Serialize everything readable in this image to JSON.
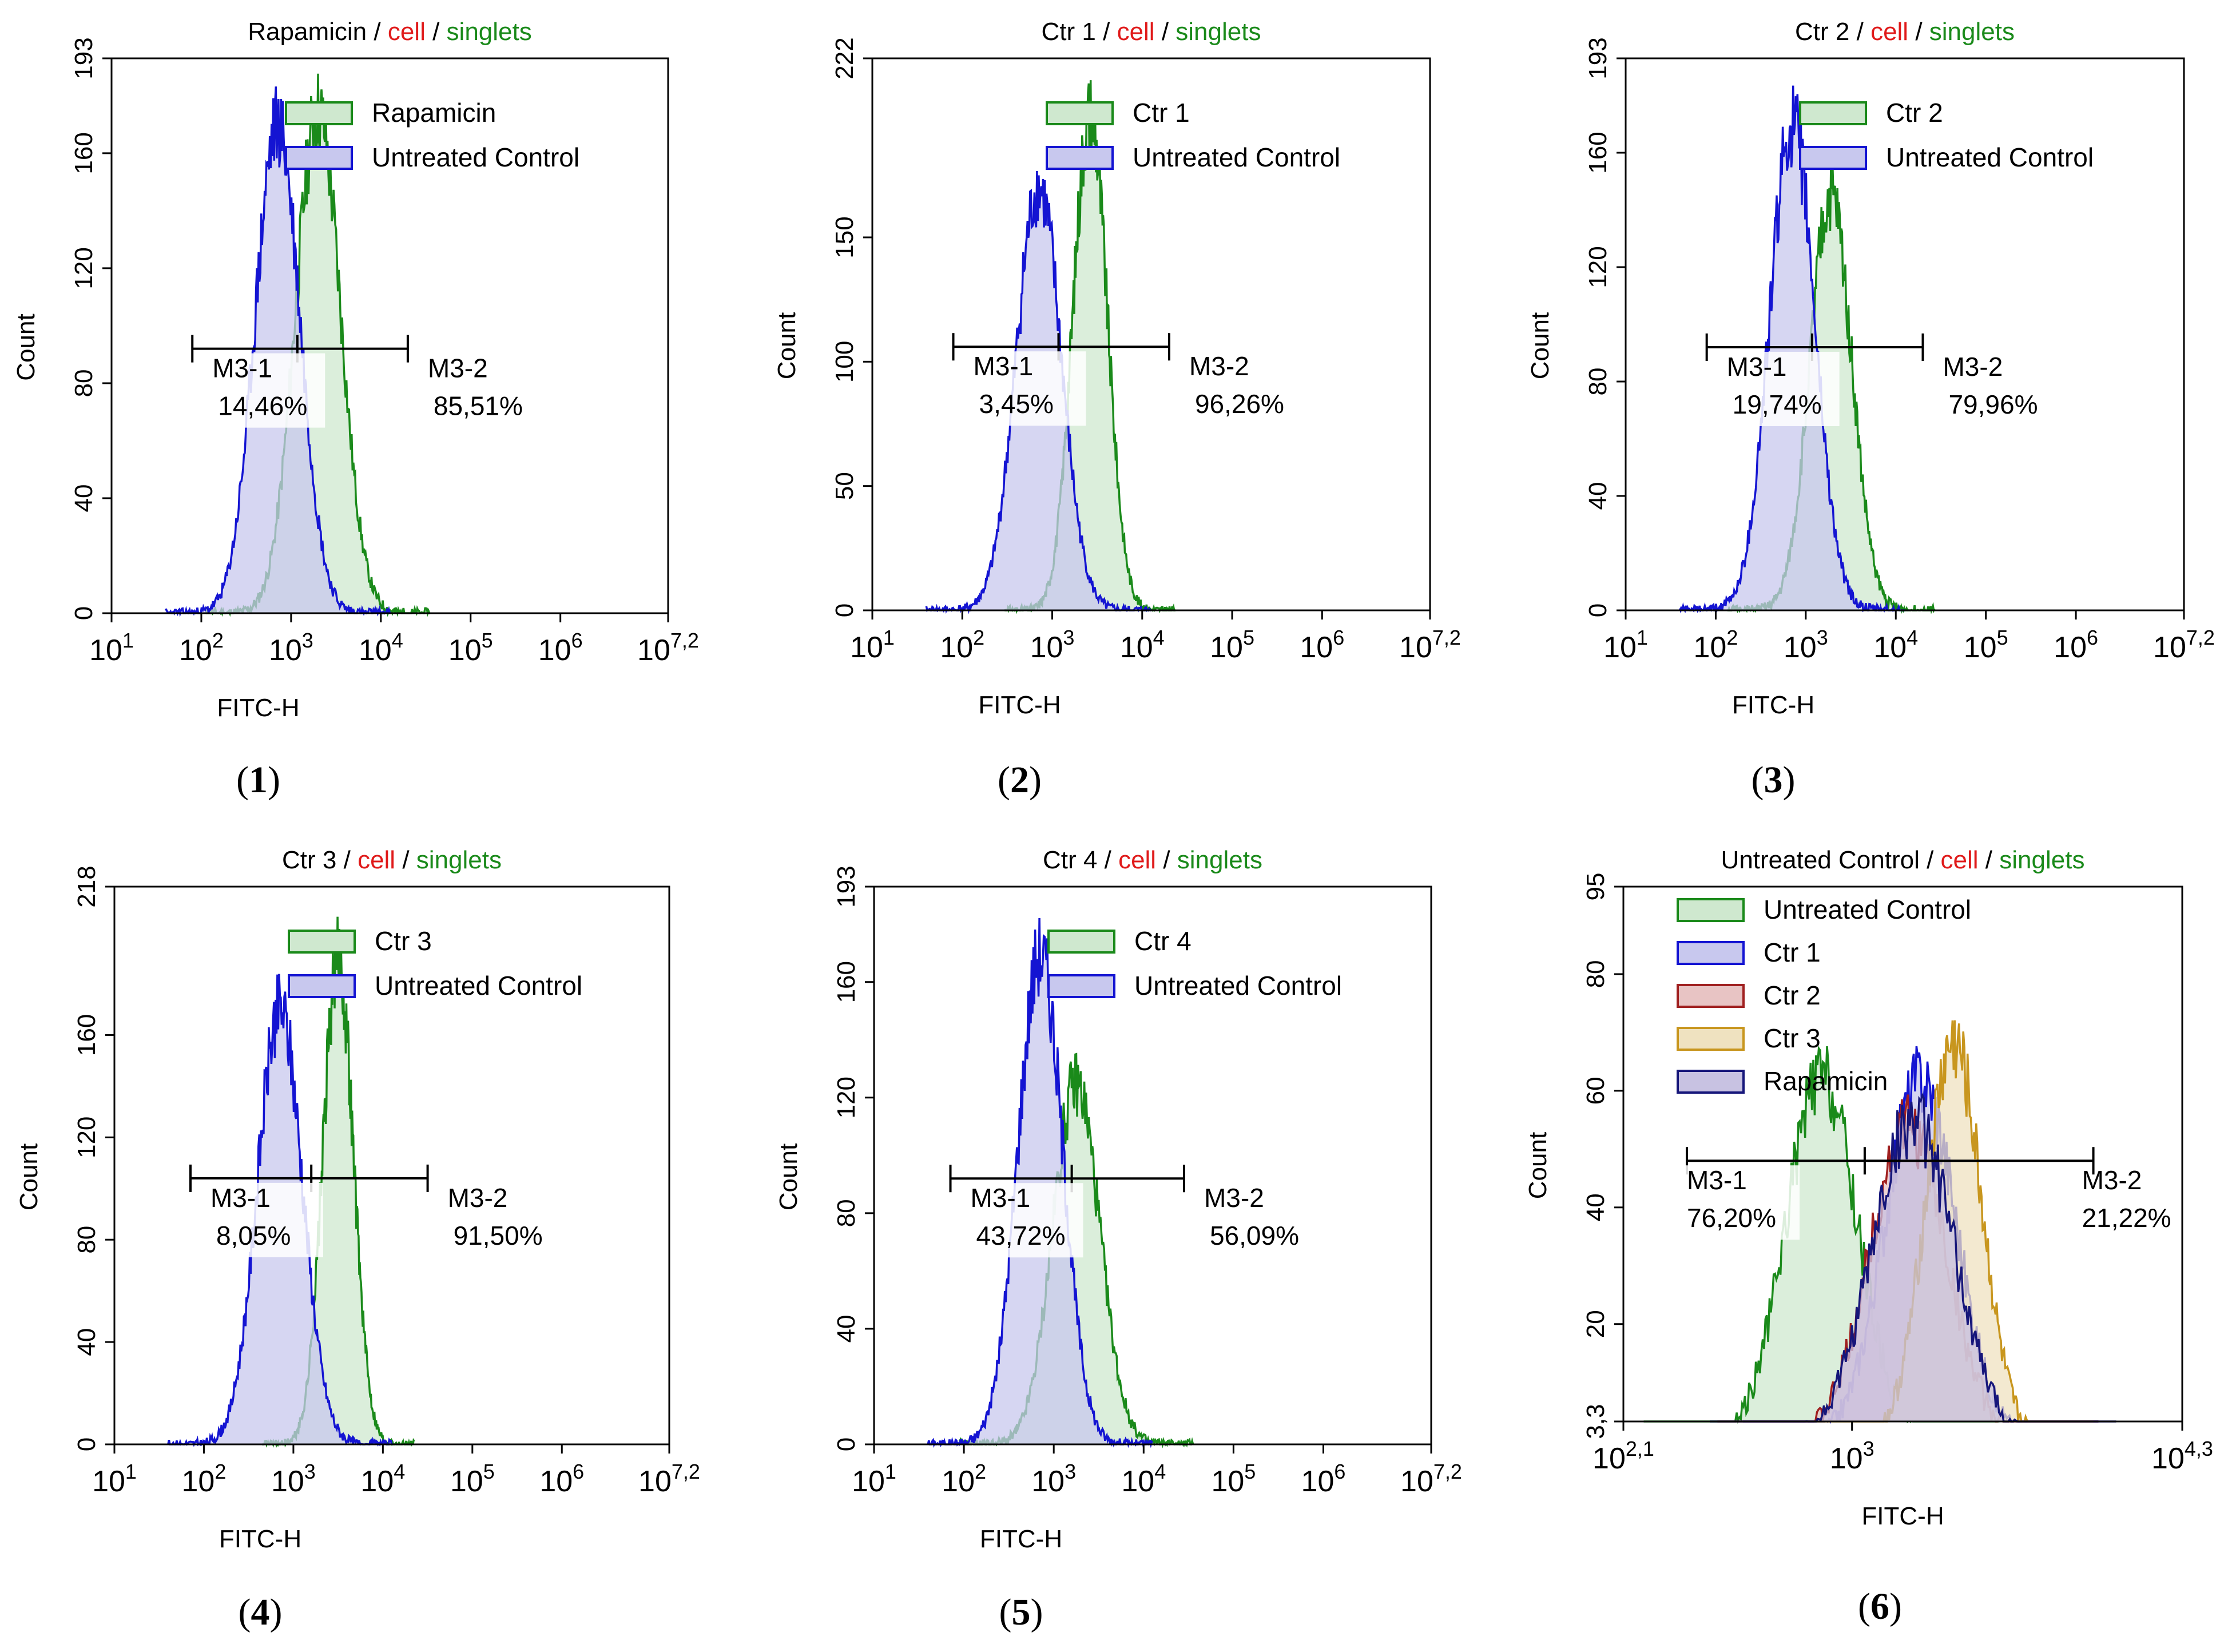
{
  "colors": {
    "green": "#1a8a1a",
    "green_fill": "#cfe8cf",
    "blue": "#1414d2",
    "blue_fill": "#c8c8ee",
    "red": "#e01a1a",
    "darkred": "#a02020",
    "darkred_fill": "#e8c4c4",
    "gold": "#c8961e",
    "gold_fill": "#efe2c0",
    "navy": "#16167a",
    "navy_fill": "#c8c2e2"
  },
  "chart_data": [
    {
      "id": "p1",
      "type": "histogram",
      "caption_num": "1",
      "title": {
        "a": "Rapamicin",
        "b": "cell",
        "c": "singlets"
      },
      "xlabel": "FITC-H",
      "ylabel": "Count",
      "xscale": "log",
      "xlim": [
        1,
        7.2
      ],
      "xticks": [
        {
          "b": "10",
          "e": "1",
          "v": 1
        },
        {
          "b": "10",
          "e": "2",
          "v": 2
        },
        {
          "b": "10",
          "e": "3",
          "v": 3
        },
        {
          "b": "10",
          "e": "4",
          "v": 4
        },
        {
          "b": "10",
          "e": "5",
          "v": 5
        },
        {
          "b": "10",
          "e": "6",
          "v": 6
        },
        {
          "b": "10",
          "e": "7,2",
          "v": 7.2
        }
      ],
      "ylim": [
        0,
        193
      ],
      "yticks": [
        {
          "v": 0,
          "t": "0"
        },
        {
          "v": 40,
          "t": "40"
        },
        {
          "v": 80,
          "t": "80"
        },
        {
          "v": 120,
          "t": "120"
        },
        {
          "v": 160,
          "t": "160"
        },
        {
          "v": 193,
          "t": "193"
        }
      ],
      "series": [
        {
          "name": "Rapamicin",
          "color": "green",
          "fill": "green_fill",
          "center": 3.3,
          "sigma": 0.25,
          "peak": 175,
          "seed": 11
        },
        {
          "name": "Untreated Control",
          "color": "blue",
          "fill": "blue_fill",
          "center": 2.85,
          "sigma": 0.25,
          "peak": 170,
          "seed": 23
        }
      ],
      "gate": {
        "y": 92,
        "x1": 1.9,
        "mid": 3.07,
        "x2": 4.3
      },
      "markers": [
        {
          "label": "M3-1",
          "pct": "14,46%",
          "side": "left"
        },
        {
          "label": "M3-2",
          "pct": "85,51%",
          "side": "right"
        }
      ]
    },
    {
      "id": "p2",
      "type": "histogram",
      "caption_num": "2",
      "title": {
        "a": "Ctr 1",
        "b": "cell",
        "c": "singlets"
      },
      "xlabel": "FITC-H",
      "ylabel": "Count",
      "xscale": "log",
      "xlim": [
        1,
        7.2
      ],
      "xticks": [
        {
          "b": "10",
          "e": "1",
          "v": 1
        },
        {
          "b": "10",
          "e": "2",
          "v": 2
        },
        {
          "b": "10",
          "e": "3",
          "v": 3
        },
        {
          "b": "10",
          "e": "4",
          "v": 4
        },
        {
          "b": "10",
          "e": "5",
          "v": 5
        },
        {
          "b": "10",
          "e": "6",
          "v": 6
        },
        {
          "b": "10",
          "e": "7,2",
          "v": 7.2
        }
      ],
      "ylim": [
        0,
        222
      ],
      "yticks": [
        {
          "v": 0,
          "t": "0"
        },
        {
          "v": 50,
          "t": "50"
        },
        {
          "v": 100,
          "t": "100"
        },
        {
          "v": 150,
          "t": "150"
        },
        {
          "v": 222,
          "t": "222"
        }
      ],
      "series": [
        {
          "name": "Ctr 1",
          "color": "green",
          "fill": "green_fill",
          "center": 3.42,
          "sigma": 0.19,
          "peak": 200,
          "seed": 31
        },
        {
          "name": "Untreated Control",
          "color": "blue",
          "fill": "blue_fill",
          "center": 2.85,
          "sigma": 0.25,
          "peak": 170,
          "seed": 41
        }
      ],
      "gate": {
        "y": 106,
        "x1": 1.9,
        "mid": 3.07,
        "x2": 4.3
      },
      "markers": [
        {
          "label": "M3-1",
          "pct": "3,45%",
          "side": "left"
        },
        {
          "label": "M3-2",
          "pct": "96,26%",
          "side": "right"
        }
      ]
    },
    {
      "id": "p3",
      "type": "histogram",
      "caption_num": "3",
      "title": {
        "a": "Ctr 2",
        "b": "cell",
        "c": "singlets"
      },
      "xlabel": "FITC-H",
      "ylabel": "Count",
      "xscale": "log",
      "xlim": [
        1,
        7.2
      ],
      "xticks": [
        {
          "b": "10",
          "e": "1",
          "v": 1
        },
        {
          "b": "10",
          "e": "2",
          "v": 2
        },
        {
          "b": "10",
          "e": "3",
          "v": 3
        },
        {
          "b": "10",
          "e": "4",
          "v": 4
        },
        {
          "b": "10",
          "e": "5",
          "v": 5
        },
        {
          "b": "10",
          "e": "6",
          "v": 6
        },
        {
          "b": "10",
          "e": "7,2",
          "v": 7.2
        }
      ],
      "ylim": [
        0,
        193
      ],
      "yticks": [
        {
          "v": 0,
          "t": "0"
        },
        {
          "v": 40,
          "t": "40"
        },
        {
          "v": 80,
          "t": "80"
        },
        {
          "v": 120,
          "t": "120"
        },
        {
          "v": 160,
          "t": "160"
        },
        {
          "v": 193,
          "t": "193"
        }
      ],
      "series": [
        {
          "name": "Ctr 2",
          "color": "green",
          "fill": "green_fill",
          "center": 3.28,
          "sigma": 0.23,
          "peak": 145,
          "seed": 51
        },
        {
          "name": "Untreated Control",
          "color": "blue",
          "fill": "blue_fill",
          "center": 2.85,
          "sigma": 0.25,
          "peak": 170,
          "seed": 61
        }
      ],
      "gate": {
        "y": 92,
        "x1": 1.9,
        "mid": 3.07,
        "x2": 4.3
      },
      "markers": [
        {
          "label": "M3-1",
          "pct": "19,74%",
          "side": "left"
        },
        {
          "label": "M3-2",
          "pct": "79,96%",
          "side": "right"
        }
      ]
    },
    {
      "id": "p4",
      "type": "histogram",
      "caption_num": "4",
      "title": {
        "a": "Ctr 3",
        "b": "cell",
        "c": "singlets"
      },
      "xlabel": "FITC-H",
      "ylabel": "Count",
      "xscale": "log",
      "xlim": [
        1,
        7.2
      ],
      "xticks": [
        {
          "b": "10",
          "e": "1",
          "v": 1
        },
        {
          "b": "10",
          "e": "2",
          "v": 2
        },
        {
          "b": "10",
          "e": "3",
          "v": 3
        },
        {
          "b": "10",
          "e": "4",
          "v": 4
        },
        {
          "b": "10",
          "e": "5",
          "v": 5
        },
        {
          "b": "10",
          "e": "6",
          "v": 6
        },
        {
          "b": "10",
          "e": "7,2",
          "v": 7.2
        }
      ],
      "ylim": [
        0,
        218
      ],
      "yticks": [
        {
          "v": 0,
          "t": "0"
        },
        {
          "v": 40,
          "t": "40"
        },
        {
          "v": 80,
          "t": "80"
        },
        {
          "v": 120,
          "t": "120"
        },
        {
          "v": 160,
          "t": "160"
        },
        {
          "v": 218,
          "t": "218"
        }
      ],
      "series": [
        {
          "name": "Ctr 3",
          "color": "green",
          "fill": "green_fill",
          "center": 3.5,
          "sigma": 0.17,
          "peak": 190,
          "seed": 71
        },
        {
          "name": "Untreated Control",
          "color": "blue",
          "fill": "blue_fill",
          "center": 2.85,
          "sigma": 0.25,
          "peak": 170,
          "seed": 81
        }
      ],
      "gate": {
        "y": 104,
        "x1": 1.85,
        "mid": 3.2,
        "x2": 4.5
      },
      "markers": [
        {
          "label": "M3-1",
          "pct": "8,05%",
          "side": "left"
        },
        {
          "label": "M3-2",
          "pct": "91,50%",
          "side": "right"
        }
      ]
    },
    {
      "id": "p5",
      "type": "histogram",
      "caption_num": "5",
      "title": {
        "a": "Ctr 4",
        "b": "cell",
        "c": "singlets"
      },
      "xlabel": "FITC-H",
      "ylabel": "Count",
      "xscale": "log",
      "xlim": [
        1,
        7.2
      ],
      "xticks": [
        {
          "b": "10",
          "e": "1",
          "v": 1
        },
        {
          "b": "10",
          "e": "2",
          "v": 2
        },
        {
          "b": "10",
          "e": "3",
          "v": 3
        },
        {
          "b": "10",
          "e": "4",
          "v": 4
        },
        {
          "b": "10",
          "e": "5",
          "v": 5
        },
        {
          "b": "10",
          "e": "6",
          "v": 6
        },
        {
          "b": "10",
          "e": "7,2",
          "v": 7.2
        }
      ],
      "ylim": [
        0,
        193
      ],
      "yticks": [
        {
          "v": 0,
          "t": "0"
        },
        {
          "v": 40,
          "t": "40"
        },
        {
          "v": 80,
          "t": "80"
        },
        {
          "v": 120,
          "t": "120"
        },
        {
          "v": 160,
          "t": "160"
        },
        {
          "v": 193,
          "t": "193"
        }
      ],
      "series": [
        {
          "name": "Ctr 4",
          "color": "green",
          "fill": "green_fill",
          "center": 3.25,
          "sigma": 0.26,
          "peak": 125,
          "seed": 91
        },
        {
          "name": "Untreated Control",
          "color": "blue",
          "fill": "blue_fill",
          "center": 2.85,
          "sigma": 0.25,
          "peak": 170,
          "seed": 101
        }
      ],
      "gate": {
        "y": 92,
        "x1": 1.85,
        "mid": 3.2,
        "x2": 4.45
      },
      "markers": [
        {
          "label": "M3-1",
          "pct": "43,72%",
          "side": "left"
        },
        {
          "label": "M3-2",
          "pct": "56,09%",
          "side": "right"
        }
      ]
    },
    {
      "id": "p6",
      "type": "histogram",
      "caption_num": "6",
      "title": {
        "a": "Untreated Control",
        "b": "cell",
        "c": "singlets"
      },
      "xlabel": "FITC-H",
      "ylabel": "Count",
      "xscale": "log",
      "xlim": [
        2.1,
        4.3
      ],
      "xticks": [
        {
          "b": "10",
          "e": "2,1",
          "v": 2.1
        },
        {
          "b": "10",
          "e": "3",
          "v": 3
        },
        {
          "b": "10",
          "e": "4,3",
          "v": 4.3
        }
      ],
      "ylim": [
        3.3,
        95
      ],
      "yticks": [
        {
          "v": 3.3,
          "t": "3,3"
        },
        {
          "v": 20,
          "t": "20"
        },
        {
          "v": 40,
          "t": "40"
        },
        {
          "v": 60,
          "t": "60"
        },
        {
          "v": 80,
          "t": "80"
        },
        {
          "v": 95,
          "t": "95"
        }
      ],
      "series": [
        {
          "name": "Untreated Control",
          "color": "green",
          "fill": "green_fill",
          "center": 2.88,
          "sigma": 0.14,
          "peak": 62,
          "seed": 111
        },
        {
          "name": "Ctr 1",
          "color": "blue",
          "fill": "blue_fill",
          "center": 3.27,
          "sigma": 0.14,
          "peak": 62,
          "seed": 121
        },
        {
          "name": "Ctr 2",
          "color": "darkred",
          "fill": "darkred_fill",
          "center": 3.22,
          "sigma": 0.15,
          "peak": 54,
          "seed": 131
        },
        {
          "name": "Ctr 3",
          "color": "gold",
          "fill": "gold_fill",
          "center": 3.4,
          "sigma": 0.11,
          "peak": 68,
          "seed": 141
        },
        {
          "name": "Rapamicin",
          "color": "navy",
          "fill": "navy_fill",
          "center": 3.24,
          "sigma": 0.16,
          "peak": 55,
          "seed": 151
        }
      ],
      "gate": {
        "y": 48,
        "x1": 2.35,
        "mid": 3.05,
        "x2": 3.95
      },
      "markers": [
        {
          "label": "M3-1",
          "pct": "76,20%",
          "side": "left"
        },
        {
          "label": "M3-2",
          "pct": "21,22%",
          "side": "right"
        }
      ]
    }
  ]
}
